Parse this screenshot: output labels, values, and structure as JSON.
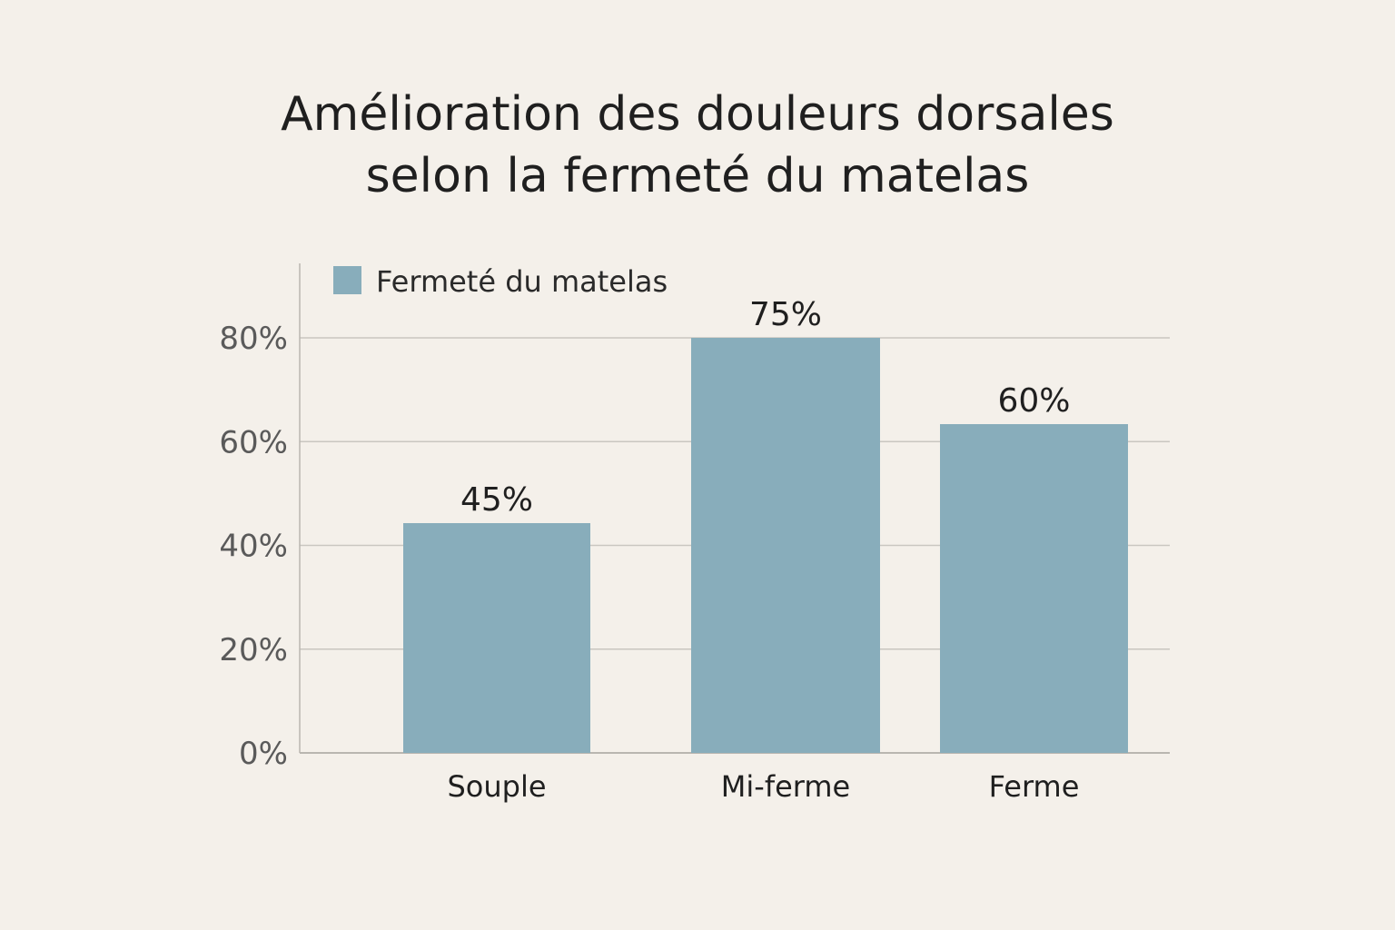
{
  "chart_data": {
    "type": "bar",
    "title_lines": [
      "Amélioration des douleurs dorsales",
      "selon la fermeté du matelas"
    ],
    "categories": [
      "Souple",
      "Mi-ferme",
      "Ferme"
    ],
    "series": [
      {
        "name": "Fermeté du matelas",
        "values": [
          45,
          75,
          60
        ]
      }
    ],
    "data_labels": [
      "45%",
      "75%",
      "60%"
    ],
    "yticks": [
      0,
      20,
      40,
      60,
      80
    ],
    "ytick_labels": [
      "0%",
      "20%",
      "40%",
      "60%",
      "80%"
    ],
    "ylim": [
      0,
      80
    ],
    "xlabel": "",
    "ylabel": "",
    "grid": true,
    "legend_position": "top-left",
    "bar_color": "#88adbb",
    "grid_color": "#c9c6c0",
    "axis_color": "#b9b6b0"
  }
}
